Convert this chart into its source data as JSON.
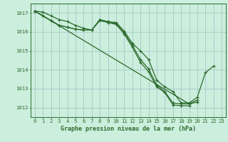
{
  "title": "Graphe pression niveau de la mer (hPa)",
  "background_color": "#cceedd",
  "grid_color": "#aacccc",
  "line_color": "#2d6b2d",
  "marker_color": "#2d6b2d",
  "x_ticks": [
    0,
    1,
    2,
    3,
    4,
    5,
    6,
    7,
    8,
    9,
    10,
    11,
    12,
    13,
    14,
    15,
    16,
    17,
    18,
    19,
    20,
    21,
    22,
    23
  ],
  "ylim": [
    1011.5,
    1017.5
  ],
  "yticks": [
    1012,
    1013,
    1014,
    1015,
    1016,
    1017
  ],
  "series": [
    [
      1017.1,
      1017.05,
      1016.85,
      1016.65,
      1016.55,
      1016.35,
      1016.2,
      1016.1,
      1016.65,
      1016.55,
      1016.5,
      1016.05,
      1015.4,
      1015.0,
      1014.55,
      1013.45,
      1013.1,
      1012.85,
      1012.25,
      1012.25,
      1012.55,
      1013.85,
      1014.2,
      null
    ],
    [
      1017.1,
      1016.85,
      1016.6,
      1016.35,
      1016.25,
      1016.15,
      1016.1,
      1016.1,
      1016.65,
      1016.5,
      1016.45,
      1015.95,
      1015.3,
      1014.55,
      1014.05,
      1013.2,
      1012.85,
      1012.25,
      1012.2,
      1012.2,
      1012.4,
      null,
      null,
      null
    ],
    [
      1017.1,
      1016.85,
      1016.6,
      1016.35,
      1016.25,
      1016.15,
      1016.1,
      1016.1,
      1016.6,
      1016.5,
      1016.4,
      1015.9,
      1015.2,
      1014.4,
      1013.9,
      1013.1,
      1012.8,
      1012.15,
      1012.1,
      1012.1,
      null,
      null,
      null,
      null
    ],
    [
      1017.1,
      null,
      null,
      null,
      null,
      null,
      null,
      null,
      null,
      null,
      null,
      null,
      null,
      null,
      null,
      null,
      null,
      null,
      null,
      1012.2,
      1012.3,
      null,
      null,
      null
    ]
  ]
}
